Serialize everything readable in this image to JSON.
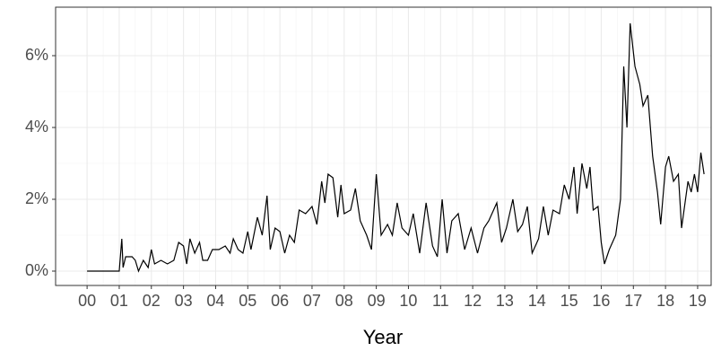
{
  "chart_data": {
    "type": "line",
    "x_label": "Year",
    "x": [
      2000.0,
      2001.0,
      2001.08,
      2001.12,
      2001.2,
      2001.4,
      2001.5,
      2001.6,
      2001.75,
      2001.9,
      2002.0,
      2002.1,
      2002.3,
      2002.5,
      2002.7,
      2002.85,
      2003.0,
      2003.1,
      2003.2,
      2003.35,
      2003.5,
      2003.6,
      2003.75,
      2003.9,
      2004.1,
      2004.3,
      2004.45,
      2004.55,
      2004.7,
      2004.85,
      2005.0,
      2005.1,
      2005.3,
      2005.45,
      2005.6,
      2005.7,
      2005.85,
      2006.0,
      2006.15,
      2006.3,
      2006.45,
      2006.6,
      2006.8,
      2007.0,
      2007.15,
      2007.3,
      2007.4,
      2007.5,
      2007.65,
      2007.8,
      2007.9,
      2008.0,
      2008.2,
      2008.35,
      2008.5,
      2008.7,
      2008.85,
      2009.0,
      2009.15,
      2009.35,
      2009.5,
      2009.65,
      2009.8,
      2010.0,
      2010.15,
      2010.35,
      2010.55,
      2010.75,
      2010.9,
      2011.05,
      2011.2,
      2011.35,
      2011.55,
      2011.75,
      2011.95,
      2012.15,
      2012.35,
      2012.5,
      2012.75,
      2012.9,
      2013.05,
      2013.25,
      2013.4,
      2013.55,
      2013.7,
      2013.85,
      2014.05,
      2014.2,
      2014.35,
      2014.5,
      2014.7,
      2014.85,
      2015.0,
      2015.15,
      2015.25,
      2015.4,
      2015.55,
      2015.65,
      2015.75,
      2015.9,
      2016.0,
      2016.1,
      2016.25,
      2016.45,
      2016.6,
      2016.7,
      2016.8,
      2016.9,
      2017.05,
      2017.2,
      2017.3,
      2017.45,
      2017.6,
      2017.75,
      2017.85,
      2018.0,
      2018.1,
      2018.25,
      2018.4,
      2018.5,
      2018.7,
      2018.8,
      2018.9,
      2019.0,
      2019.1,
      2019.2
    ],
    "values": [
      0,
      0,
      0.9,
      0.1,
      0.4,
      0.4,
      0.3,
      0.0,
      0.3,
      0.1,
      0.6,
      0.2,
      0.3,
      0.2,
      0.3,
      0.8,
      0.7,
      0.2,
      0.9,
      0.5,
      0.8,
      0.3,
      0.3,
      0.6,
      0.6,
      0.7,
      0.5,
      0.9,
      0.6,
      0.5,
      1.1,
      0.6,
      1.5,
      1.0,
      2.1,
      0.6,
      1.2,
      1.1,
      0.5,
      1.0,
      0.8,
      1.7,
      1.6,
      1.8,
      1.3,
      2.5,
      1.9,
      2.7,
      2.6,
      1.5,
      2.4,
      1.6,
      1.7,
      2.3,
      1.4,
      1.0,
      0.6,
      2.7,
      1.0,
      1.3,
      1.0,
      1.9,
      1.2,
      1.0,
      1.6,
      0.5,
      1.9,
      0.7,
      0.4,
      2.0,
      0.5,
      1.4,
      1.6,
      0.6,
      1.2,
      0.5,
      1.2,
      1.4,
      1.9,
      0.8,
      1.2,
      2.0,
      1.1,
      1.3,
      1.8,
      0.5,
      0.9,
      1.8,
      1.0,
      1.7,
      1.6,
      2.4,
      2.0,
      2.9,
      1.6,
      3.0,
      2.3,
      2.9,
      1.7,
      1.8,
      0.8,
      0.2,
      0.6,
      1.0,
      2.0,
      5.7,
      4.0,
      6.9,
      5.7,
      5.2,
      4.6,
      4.9,
      3.2,
      2.2,
      1.3,
      2.9,
      3.2,
      2.5,
      2.7,
      1.2,
      2.5,
      2.2,
      2.7,
      2.2,
      3.3,
      2.7
    ],
    "color": "#000000",
    "xlim": [
      1999.02,
      2019.42
    ],
    "ylim": [
      -0.4,
      7.35
    ],
    "xticks": [
      {
        "value": 2000,
        "label": "00"
      },
      {
        "value": 2001,
        "label": "01"
      },
      {
        "value": 2002,
        "label": "02"
      },
      {
        "value": 2003,
        "label": "03"
      },
      {
        "value": 2004,
        "label": "04"
      },
      {
        "value": 2005,
        "label": "05"
      },
      {
        "value": 2006,
        "label": "06"
      },
      {
        "value": 2007,
        "label": "07"
      },
      {
        "value": 2008,
        "label": "08"
      },
      {
        "value": 2009,
        "label": "09"
      },
      {
        "value": 2010,
        "label": "10"
      },
      {
        "value": 2011,
        "label": "11"
      },
      {
        "value": 2012,
        "label": "12"
      },
      {
        "value": 2013,
        "label": "13"
      },
      {
        "value": 2014,
        "label": "14"
      },
      {
        "value": 2015,
        "label": "15"
      },
      {
        "value": 2016,
        "label": "16"
      },
      {
        "value": 2017,
        "label": "17"
      },
      {
        "value": 2018,
        "label": "18"
      },
      {
        "value": 2019,
        "label": "19"
      }
    ],
    "yticks": [
      {
        "value": 0,
        "label": "0%"
      },
      {
        "value": 2,
        "label": "2%"
      },
      {
        "value": 4,
        "label": "4%"
      },
      {
        "value": 6,
        "label": "6%"
      }
    ],
    "grid": true,
    "minor_grid": true
  }
}
